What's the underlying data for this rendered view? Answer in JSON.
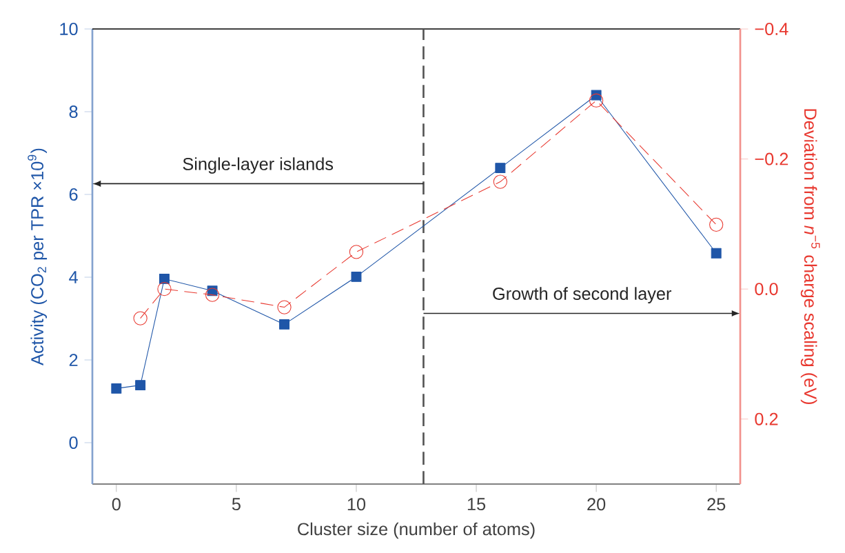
{
  "chart_data": {
    "type": "line",
    "xlabel": "Cluster size (number of atoms)",
    "ylabel": "Activity (CO$_{2}$ per TPR ×10$^{9}$)",
    "y2label": "Deviation from *n*$^{−5}$ charge scaling (eV)",
    "x": [
      0,
      1,
      2,
      4,
      7,
      10,
      16,
      20,
      25
    ],
    "series": [
      {
        "color": "#1f56a8",
        "marker": "square",
        "line_style": "solid",
        "values": [
          1.31,
          1.39,
          3.96,
          3.67,
          2.86,
          4.01,
          6.64,
          8.4,
          4.58
        ]
      },
      {
        "color": "#e8382f",
        "marker": "circle",
        "line_style": "dashed",
        "axis": "y2",
        "values": [
          null,
          0.045,
          0.0,
          0.009,
          0.028,
          -0.057,
          -0.165,
          -0.29,
          -0.099
        ]
      }
    ],
    "xlim": [
      -1,
      26
    ],
    "xticks": [
      0,
      5,
      10,
      15,
      20,
      25
    ],
    "ylim": [
      -1,
      10
    ],
    "yticks": [
      0,
      2,
      4,
      6,
      8,
      10
    ],
    "y2lim": [
      0.3,
      -0.4
    ],
    "y2ticks": [
      {
        "value": -0.4,
        "label": "−0.4"
      },
      {
        "value": -0.2,
        "label": "−0.2"
      },
      {
        "value": 0.0,
        "label": "0.0"
      },
      {
        "value": 0.2,
        "label": "0.2"
      }
    ],
    "ref_lines": [
      {
        "axis": "x",
        "value": 12.8,
        "color": "#555555",
        "line_style": "dashed"
      }
    ],
    "annotations": [
      "Single-layer islands",
      "Growth of second layer"
    ]
  }
}
